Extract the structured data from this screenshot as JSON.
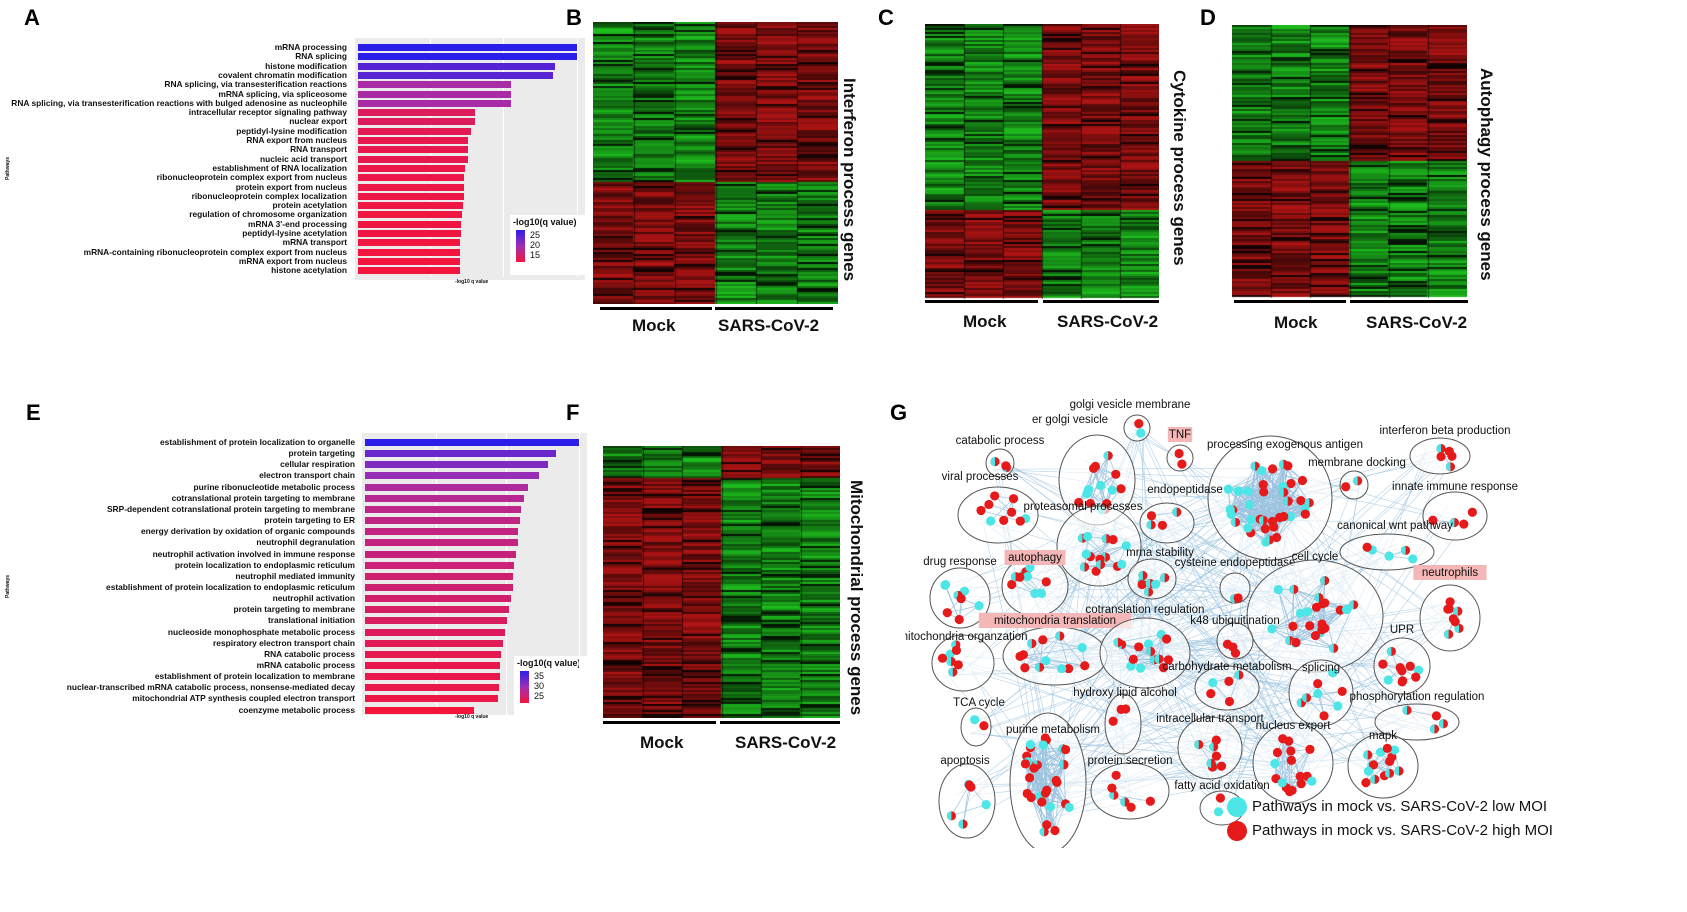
{
  "panel_letters": [
    "A",
    "B",
    "C",
    "D",
    "E",
    "F",
    "G"
  ],
  "colors": {
    "heat_red": "#b31515",
    "heat_green": "#19b319",
    "heat_black": "#000000",
    "low_moi": "#4de6e6",
    "high_moi": "#e61a1a",
    "edge": "#9cc3df",
    "cluster_stroke": "#555555",
    "highlight_bg": "#f4b6b6",
    "bar_high": "#2b1ee8",
    "bar_mid": "#9f2fb3",
    "bar_low": "#f5143a"
  },
  "chart_data": [
    {
      "panel": "A",
      "type": "bar",
      "orientation": "horizontal",
      "ylabel": "Pathways",
      "xlabel": "-log10 q value",
      "legend_title": "-log10(q value)",
      "legend_ticks": [
        "25",
        "20",
        "15"
      ],
      "legend_range": [
        13,
        28
      ],
      "xlim": [
        0,
        28
      ],
      "categories": [
        "mRNA processing",
        "RNA splicing",
        "histone modification",
        "covalent chromatin modification",
        "RNA splicing, via transesterification reactions",
        "mRNA splicing, via spliceosome",
        "RNA splicing, via transesterification reactions with bulged adenosine as nucleophile",
        "intracellular receptor signaling pathway",
        "nuclear export",
        "peptidyl-lysine modification",
        "RNA export from nucleus",
        "RNA transport",
        "nucleic acid transport",
        "establishment of RNA localization",
        "ribonucleoprotein complex export from nucleus",
        "protein export from nucleus",
        "ribonucleoprotein complex localization",
        "protein acetylation",
        "regulation of chromosome organization",
        "mRNA 3'-end processing",
        "peptidyl-lysine acetylation",
        "mRNA transport",
        "mRNA-containing ribonucleoprotein complex export from nucleus",
        "mRNA export from nucleus",
        "histone acetylation"
      ],
      "values": [
        28,
        28,
        25.2,
        25,
        19.7,
        19.7,
        19.7,
        15.1,
        15.1,
        14.6,
        14.2,
        14.2,
        14.2,
        13.9,
        13.8,
        13.8,
        13.8,
        13.6,
        13.5,
        13.4,
        13.4,
        13.3,
        13.3,
        13.2,
        13.2
      ]
    },
    {
      "panel": "E",
      "type": "bar",
      "orientation": "horizontal",
      "ylabel": "Pathways",
      "xlabel": "-log10 q value",
      "legend_title": "-log10(q value)",
      "legend_ticks": [
        "35",
        "30",
        "25"
      ],
      "legend_range": [
        23,
        38
      ],
      "xlim": [
        0,
        38
      ],
      "categories": [
        "establishment of protein localization to organelle",
        "protein targeting",
        "cellular respiration",
        "electron transport chain",
        "purine ribonucleotide metabolic process",
        "cotranslational protein targeting to membrane",
        "SRP-dependent cotranslational protein targeting to membrane",
        "protein targeting to ER",
        "energy derivation by oxidation of organic compounds",
        "neutrophil degranulation",
        "neutrophil activation involved in immune response",
        "protein localization to endoplasmic reticulum",
        "neutrophil mediated immunity",
        "establishment of protein localization to endoplasmic reticulum",
        "neutrophil activation",
        "protein targeting to membrane",
        "translational initiation",
        "nucleoside monophosphate metabolic process",
        "respiratory electron transport chain",
        "RNA catabolic process",
        "mRNA catabolic process",
        "establishment of protein localization to membrane",
        "nuclear-transcribed mRNA catabolic process, nonsense-mediated decay",
        "mitochondrial ATP synthesis coupled electron transport",
        "coenzyme metabolic process"
      ],
      "values": [
        38,
        34,
        32.5,
        31,
        29.1,
        28.4,
        27.9,
        27.6,
        27.4,
        27.3,
        27.0,
        26.7,
        26.4,
        26.4,
        26.1,
        25.7,
        25.4,
        25.0,
        24.7,
        24.4,
        24.2,
        24.1,
        24.0,
        23.8,
        19.6
      ]
    },
    {
      "panel": "B",
      "type": "heatmap",
      "title": "Interferon process genes",
      "groups": [
        "Mock",
        "SARS-CoV-2"
      ],
      "columns_per_group": 3,
      "blocks": [
        {
          "fraction": 0.57,
          "mock": "green",
          "sars": "red"
        },
        {
          "fraction": 0.43,
          "mock": "red",
          "sars": "green"
        }
      ]
    },
    {
      "panel": "C",
      "type": "heatmap",
      "title": "Cytokine process genes",
      "groups": [
        "Mock",
        "SARS-CoV-2"
      ],
      "columns_per_group": 3,
      "blocks": [
        {
          "fraction": 0.68,
          "mock": "green",
          "sars": "red"
        },
        {
          "fraction": 0.32,
          "mock": "red",
          "sars": "green"
        }
      ]
    },
    {
      "panel": "D",
      "type": "heatmap",
      "title": "Autophagy process genes",
      "groups": [
        "Mock",
        "SARS-CoV-2"
      ],
      "columns_per_group": 3,
      "blocks": [
        {
          "fraction": 0.5,
          "mock": "green",
          "sars": "red"
        },
        {
          "fraction": 0.5,
          "mock": "red",
          "sars": "green"
        }
      ]
    },
    {
      "panel": "F",
      "type": "heatmap",
      "title": "Mitochondrial process genes",
      "groups": [
        "Mock",
        "SARS-CoV-2"
      ],
      "columns_per_group": 3,
      "blocks": [
        {
          "fraction": 0.12,
          "mock": "green",
          "sars": "red"
        },
        {
          "fraction": 0.88,
          "mock": "red",
          "sars": "green"
        }
      ]
    }
  ],
  "network": {
    "panel": "G",
    "legend": [
      {
        "label": "Pathways in mock vs. SARS-CoV-2 low MOI",
        "color": "#4de6e6"
      },
      {
        "label": "Pathways in mock vs. SARS-CoV-2  high MOI",
        "color": "#e61a1a"
      }
    ],
    "clusters": [
      {
        "label": "golgi vesicle membrane",
        "nodes": 2,
        "highlight": false
      },
      {
        "label": "er golgi vesicle",
        "nodes": 14,
        "highlight": false
      },
      {
        "label": "TNF",
        "nodes": 2,
        "highlight": true
      },
      {
        "label": "catabolic process",
        "nodes": 3,
        "highlight": false
      },
      {
        "label": "processing exogenous antigen",
        "nodes": 40,
        "highlight": false
      },
      {
        "label": "membrane docking",
        "nodes": 2,
        "highlight": false
      },
      {
        "label": "interferon beta production",
        "nodes": 5,
        "highlight": false
      },
      {
        "label": "viral processes",
        "nodes": 9,
        "highlight": false
      },
      {
        "label": "endopeptidase",
        "nodes": 4,
        "highlight": false
      },
      {
        "label": "innate immune response",
        "nodes": 4,
        "highlight": false
      },
      {
        "label": "proteasomal processes",
        "nodes": 14,
        "highlight": false
      },
      {
        "label": "canonical wnt pathway",
        "nodes": 5,
        "highlight": false
      },
      {
        "label": "drug response",
        "nodes": 8,
        "highlight": false
      },
      {
        "label": "autophagy",
        "nodes": 10,
        "highlight": true
      },
      {
        "label": "mrna stability",
        "nodes": 7,
        "highlight": false
      },
      {
        "label": "cysteine endopeptidase",
        "nodes": 2,
        "highlight": false
      },
      {
        "label": "cell cycle",
        "nodes": 24,
        "highlight": false
      },
      {
        "label": "neutrophils",
        "nodes": 8,
        "highlight": true
      },
      {
        "label": "mitochondria translation",
        "nodes": 12,
        "highlight": true
      },
      {
        "label": "cotranslation regulation",
        "nodes": 14,
        "highlight": false
      },
      {
        "label": "k48 ubiquitination",
        "nodes": 3,
        "highlight": false
      },
      {
        "label": "UPR",
        "nodes": 10,
        "highlight": false
      },
      {
        "label": "mitochondria organzation",
        "nodes": 7,
        "highlight": false
      },
      {
        "label": "carbohydrate metabolism",
        "nodes": 5,
        "highlight": false
      },
      {
        "label": "splicing",
        "nodes": 8,
        "highlight": false
      },
      {
        "label": "phosphorylation regulation",
        "nodes": 4,
        "highlight": false
      },
      {
        "label": "hydroxy lipid alcohol",
        "nodes": 3,
        "highlight": false
      },
      {
        "label": "TCA cycle",
        "nodes": 2,
        "highlight": false
      },
      {
        "label": "intracellular transport",
        "nodes": 8,
        "highlight": false
      },
      {
        "label": "nucleus export",
        "nodes": 16,
        "highlight": false
      },
      {
        "label": "mapk",
        "nodes": 14,
        "highlight": false
      },
      {
        "label": "purine metabolism",
        "nodes": 30,
        "highlight": false
      },
      {
        "label": "apoptosis",
        "nodes": 6,
        "highlight": false
      },
      {
        "label": "protein secretion",
        "nodes": 6,
        "highlight": false
      },
      {
        "label": "fatty acid oxidation",
        "nodes": 2,
        "highlight": false
      }
    ]
  }
}
